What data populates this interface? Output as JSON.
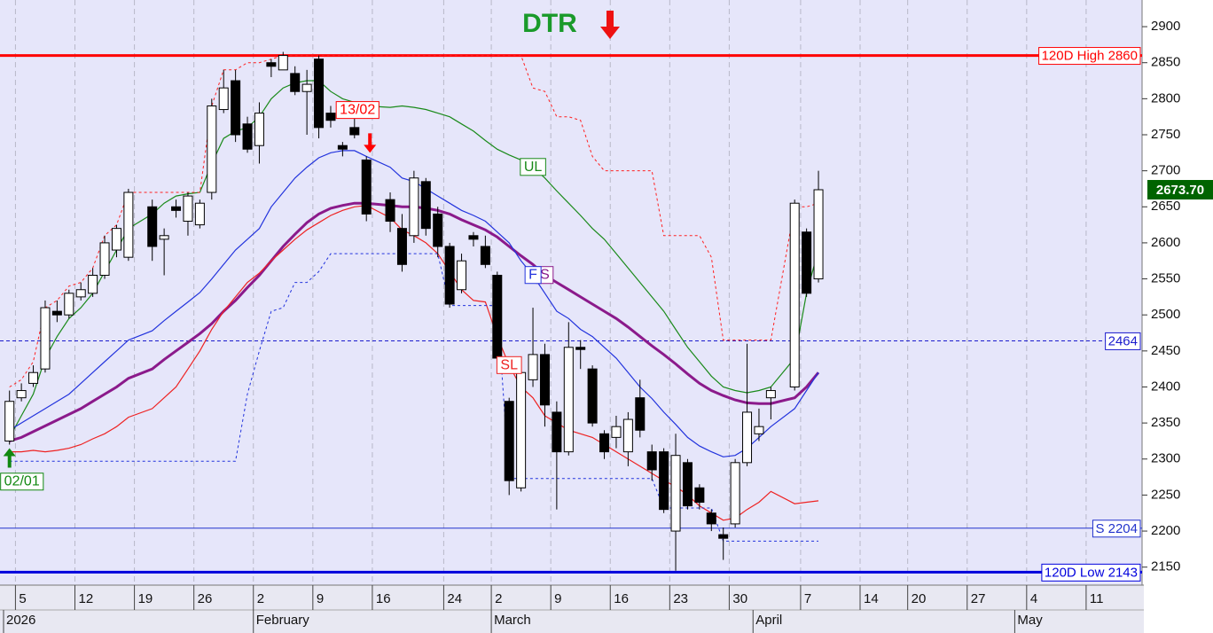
{
  "chart_data": {
    "type": "candlestick",
    "title": "DTR",
    "title_color": "#1a9a2a",
    "x": [
      "2026-01-02",
      "2026-01-05",
      "2026-01-06",
      "2026-01-07",
      "2026-01-08",
      "2026-01-09",
      "2026-01-12",
      "2026-01-13",
      "2026-01-14",
      "2026-01-15",
      "2026-01-16",
      "2026-01-20",
      "2026-01-21",
      "2026-01-22",
      "2026-01-23",
      "2026-01-26",
      "2026-01-27",
      "2026-01-28",
      "2026-01-29",
      "2026-01-30",
      "2026-02-02",
      "2026-02-03",
      "2026-02-04",
      "2026-02-05",
      "2026-02-06",
      "2026-02-09",
      "2026-02-10",
      "2026-02-11",
      "2026-02-12",
      "2026-02-13",
      "2026-02-17",
      "2026-02-18",
      "2026-02-19",
      "2026-02-20",
      "2026-02-23",
      "2026-02-24",
      "2026-02-25",
      "2026-02-26",
      "2026-02-27",
      "2026-03-02",
      "2026-03-03",
      "2026-03-04",
      "2026-03-05",
      "2026-03-06",
      "2026-03-09",
      "2026-03-10",
      "2026-03-11",
      "2026-03-12",
      "2026-03-13",
      "2026-03-16",
      "2026-03-17",
      "2026-03-18",
      "2026-03-19",
      "2026-03-20",
      "2026-03-23",
      "2026-03-24",
      "2026-03-25",
      "2026-03-26",
      "2026-03-27",
      "2026-03-30",
      "2026-03-31",
      "2026-04-01",
      "2026-04-02",
      "2026-04-06",
      "2026-04-07",
      "2026-04-08"
    ],
    "open": [
      2325,
      2385,
      2405,
      2425,
      2505,
      2500,
      2525,
      2530,
      2555,
      2590,
      2580,
      2650,
      2605,
      2650,
      2630,
      2625,
      2670,
      2785,
      2825,
      2765,
      2735,
      2850,
      2840,
      2835,
      2810,
      2855,
      2780,
      2735,
      2760,
      2715,
      2660,
      2620,
      2610,
      2685,
      2640,
      2595,
      2535,
      2610,
      2595,
      2555,
      2380,
      2260,
      2410,
      2445,
      2365,
      2310,
      2455,
      2425,
      2335,
      2330,
      2310,
      2385,
      2310,
      2310,
      2200,
      2295,
      2260,
      2225,
      2195,
      2210,
      2295,
      2335,
      2385,
      2400,
      2615,
      2550
    ],
    "high": [
      2395,
      2405,
      2430,
      2520,
      2520,
      2535,
      2545,
      2565,
      2610,
      2625,
      2675,
      2660,
      2620,
      2660,
      2670,
      2660,
      2800,
      2840,
      2840,
      2775,
      2795,
      2855,
      2865,
      2845,
      2840,
      2860,
      2790,
      2740,
      2775,
      2720,
      2670,
      2640,
      2700,
      2690,
      2650,
      2600,
      2585,
      2615,
      2610,
      2560,
      2385,
      2425,
      2510,
      2460,
      2380,
      2490,
      2465,
      2430,
      2340,
      2360,
      2365,
      2410,
      2320,
      2315,
      2335,
      2300,
      2265,
      2230,
      2205,
      2300,
      2460,
      2370,
      2400,
      2660,
      2620,
      2700
    ],
    "low": [
      2320,
      2380,
      2400,
      2420,
      2490,
      2495,
      2520,
      2525,
      2550,
      2580,
      2575,
      2575,
      2555,
      2635,
      2610,
      2620,
      2660,
      2780,
      2740,
      2725,
      2710,
      2830,
      2840,
      2805,
      2750,
      2745,
      2760,
      2720,
      2745,
      2630,
      2615,
      2560,
      2600,
      2610,
      2580,
      2510,
      2530,
      2595,
      2565,
      2435,
      2250,
      2255,
      2400,
      2345,
      2230,
      2305,
      2425,
      2345,
      2300,
      2315,
      2290,
      2330,
      2270,
      2225,
      2145,
      2230,
      2230,
      2200,
      2160,
      2205,
      2290,
      2325,
      2355,
      2395,
      2525,
      2545
    ],
    "close": [
      2380,
      2395,
      2420,
      2510,
      2500,
      2530,
      2535,
      2555,
      2600,
      2620,
      2670,
      2595,
      2610,
      2645,
      2665,
      2655,
      2790,
      2815,
      2750,
      2730,
      2780,
      2845,
      2860,
      2810,
      2820,
      2760,
      2770,
      2730,
      2750,
      2640,
      2630,
      2570,
      2690,
      2620,
      2595,
      2515,
      2575,
      2605,
      2570,
      2440,
      2270,
      2420,
      2445,
      2375,
      2310,
      2455,
      2452,
      2350,
      2310,
      2345,
      2355,
      2340,
      2285,
      2230,
      2305,
      2235,
      2240,
      2210,
      2190,
      2295,
      2365,
      2345,
      2395,
      2655,
      2530,
      2673.7
    ],
    "series": [
      {
        "name": "UL",
        "color": "#1a8a1a",
        "width": 1.2,
        "values": [
          2330,
          2360,
          2390,
          2440,
          2470,
          2495,
          2510,
          2530,
          2560,
          2590,
          2620,
          2640,
          2655,
          2665,
          2668,
          2670,
          2710,
          2745,
          2755,
          2760,
          2775,
          2800,
          2815,
          2822,
          2825,
          2825,
          2810,
          2800,
          2795,
          2790,
          2788,
          2790,
          2788,
          2785,
          2780,
          2775,
          2765,
          2755,
          2742,
          2730,
          2722,
          2715,
          2705,
          2690,
          2672,
          2655,
          2638,
          2620,
          2605,
          2585,
          2565,
          2545,
          2525,
          2505,
          2480,
          2455,
          2435,
          2415,
          2400,
          2395,
          2392,
          2395,
          2400,
          2440,
          2530,
          2590
        ]
      },
      {
        "name": "S",
        "color": "#8b1a8b",
        "width": 3,
        "values": [
          2325,
          2330,
          2338,
          2346,
          2354,
          2362,
          2370,
          2380,
          2390,
          2400,
          2412,
          2425,
          2438,
          2450,
          2462,
          2474,
          2488,
          2505,
          2520,
          2538,
          2555,
          2575,
          2595,
          2612,
          2628,
          2640,
          2648,
          2652,
          2655,
          2655,
          2652,
          2650,
          2650,
          2648,
          2645,
          2640,
          2632,
          2625,
          2618,
          2608,
          2595,
          2582,
          2570,
          2555,
          2545,
          2535,
          2525,
          2515,
          2505,
          2495,
          2483,
          2470,
          2457,
          2445,
          2432,
          2418,
          2405,
          2395,
          2388,
          2382,
          2378,
          2377,
          2377,
          2385,
          2400,
          2420
        ]
      },
      {
        "name": "F",
        "color": "#2233dd",
        "width": 1.2,
        "values": [
          2340,
          2350,
          2360,
          2370,
          2380,
          2390,
          2405,
          2420,
          2435,
          2450,
          2465,
          2478,
          2492,
          2505,
          2518,
          2531,
          2550,
          2570,
          2590,
          2605,
          2620,
          2650,
          2670,
          2690,
          2705,
          2718,
          2725,
          2728,
          2728,
          2720,
          2705,
          2690,
          2685,
          2675,
          2665,
          2655,
          2645,
          2638,
          2630,
          2615,
          2600,
          2575,
          2555,
          2530,
          2505,
          2495,
          2480,
          2470,
          2455,
          2440,
          2420,
          2400,
          2384,
          2365,
          2348,
          2330,
          2318,
          2310,
          2303,
          2305,
          2315,
          2330,
          2345,
          2370,
          2395,
          2420
        ]
      },
      {
        "name": "SL",
        "color": "#ee2222",
        "width": 1.2,
        "values": [
          2310,
          2310,
          2312,
          2310,
          2312,
          2315,
          2320,
          2328,
          2335,
          2345,
          2358,
          2370,
          2385,
          2400,
          2425,
          2450,
          2480,
          2505,
          2525,
          2545,
          2558,
          2575,
          2590,
          2605,
          2618,
          2628,
          2638,
          2645,
          2650,
          2652,
          2635,
          2618,
          2610,
          2600,
          2585,
          2560,
          2535,
          2520,
          2518,
          2470,
          2430,
          2400,
          2385,
          2360,
          2350,
          2340,
          2335,
          2330,
          2320,
          2310,
          2300,
          2290,
          2280,
          2270,
          2262,
          2250,
          2235,
          2225,
          2215,
          2218,
          2230,
          2240,
          2255,
          2238,
          2240,
          2242
        ]
      },
      {
        "color": "#ff2020",
        "width": 1,
        "dash": true,
        "values": [
          2400,
          2410,
          2435,
          2510,
          2520,
          2540,
          2545,
          2565,
          2610,
          2625,
          2670,
          2670,
          2670,
          2670,
          2670,
          2670,
          2790,
          2840,
          2840,
          2850,
          2850,
          2855,
          2860,
          2860,
          2860,
          2860,
          2860,
          2860,
          2860,
          2860,
          2860,
          2860,
          2860,
          2860,
          2860,
          2860,
          2860,
          2860,
          2860,
          2860,
          2860,
          2860,
          2815,
          2810,
          2775,
          2775,
          2770,
          2720,
          2700,
          2700,
          2700,
          2700,
          2700,
          2610,
          2610,
          2610,
          2610,
          2580,
          2465,
          2465,
          2465,
          2465,
          2465,
          2650,
          2650,
          2655
        ]
      },
      {
        "color": "#2233dd",
        "width": 1,
        "dash": true,
        "values": [
          2297,
          2297,
          2297,
          2297,
          2297,
          2297,
          2297,
          2297,
          2297,
          2297,
          2297,
          2297,
          2297,
          2297,
          2297,
          2297,
          2297,
          2297,
          2297,
          2390,
          2450,
          2505,
          2510,
          2545,
          2545,
          2560,
          2585,
          2585,
          2585,
          2585,
          2585,
          2585,
          2585,
          2585,
          2585,
          2513,
          2513,
          2513,
          2513,
          2513,
          2273,
          2273,
          2273,
          2273,
          2273,
          2273,
          2273,
          2273,
          2273,
          2273,
          2273,
          2273,
          2273,
          2232,
          2232,
          2232,
          2232,
          2232,
          2186,
          2186,
          2186,
          2186,
          2186,
          2186,
          2186,
          2186
        ]
      }
    ],
    "levels": [
      {
        "label": "120D High 2860",
        "value": 2860,
        "color": "#ff0000",
        "width": 3
      },
      {
        "value": 2464,
        "color": "#1a1acc",
        "width": 1,
        "dash": true
      },
      {
        "label": "S 2204",
        "value": 2204,
        "color": "#2233cc",
        "width": 1
      },
      {
        "label": "120D Low 2143",
        "value": 2143,
        "color": "#0000dd",
        "width": 3
      }
    ],
    "last_price": {
      "value": 2673.7,
      "label": "2673.70"
    },
    "annotations": [
      {
        "text": "13/02",
        "x": "2026-02-13",
        "color": "#ff0000",
        "arrow": "down"
      },
      {
        "text": "02/01",
        "x": "2026-01-02",
        "color": "#118811",
        "arrow": "up"
      }
    ],
    "xlim": [
      "2026-01-01",
      "2026-05-15"
    ],
    "ylim": [
      2125,
      2937
    ],
    "yticks": [
      2150,
      2200,
      2250,
      2300,
      2350,
      2400,
      2450,
      2500,
      2550,
      2600,
      2650,
      2700,
      2750,
      2800,
      2850,
      2900
    ],
    "xticks": [
      {
        "value": "2026-01-05",
        "label": "5"
      },
      {
        "value": "2026-01-12",
        "label": "12"
      },
      {
        "value": "2026-01-19",
        "label": "19"
      },
      {
        "value": "2026-01-26",
        "label": "26"
      },
      {
        "value": "2026-02-02",
        "label": "2"
      },
      {
        "value": "2026-02-09",
        "label": "9"
      },
      {
        "value": "2026-02-16",
        "label": "16"
      },
      {
        "value": "2026-02-24",
        "label": "24"
      },
      {
        "value": "2026-03-02",
        "label": "2"
      },
      {
        "value": "2026-03-09",
        "label": "9"
      },
      {
        "value": "2026-03-16",
        "label": "16"
      },
      {
        "value": "2026-03-23",
        "label": "23"
      },
      {
        "value": "2026-03-30",
        "label": "30"
      },
      {
        "value": "2026-04-07",
        "label": "7"
      },
      {
        "value": "2026-04-14",
        "label": "14"
      },
      {
        "value": "2026-04-20",
        "label": "20"
      },
      {
        "value": "2026-04-27",
        "label": "27"
      },
      {
        "value": "2026-05-04",
        "label": "4"
      },
      {
        "value": "2026-05-11",
        "label": "11"
      }
    ],
    "month_ticks": [
      {
        "value": "2026-01-02",
        "label": "2026"
      },
      {
        "value": "2026-02-02",
        "label": "February"
      },
      {
        "value": "2026-03-02",
        "label": "March"
      },
      {
        "value": "2026-04-01",
        "label": "April"
      },
      {
        "value": "2026-05-01",
        "label": "May"
      }
    ],
    "grid": true
  }
}
